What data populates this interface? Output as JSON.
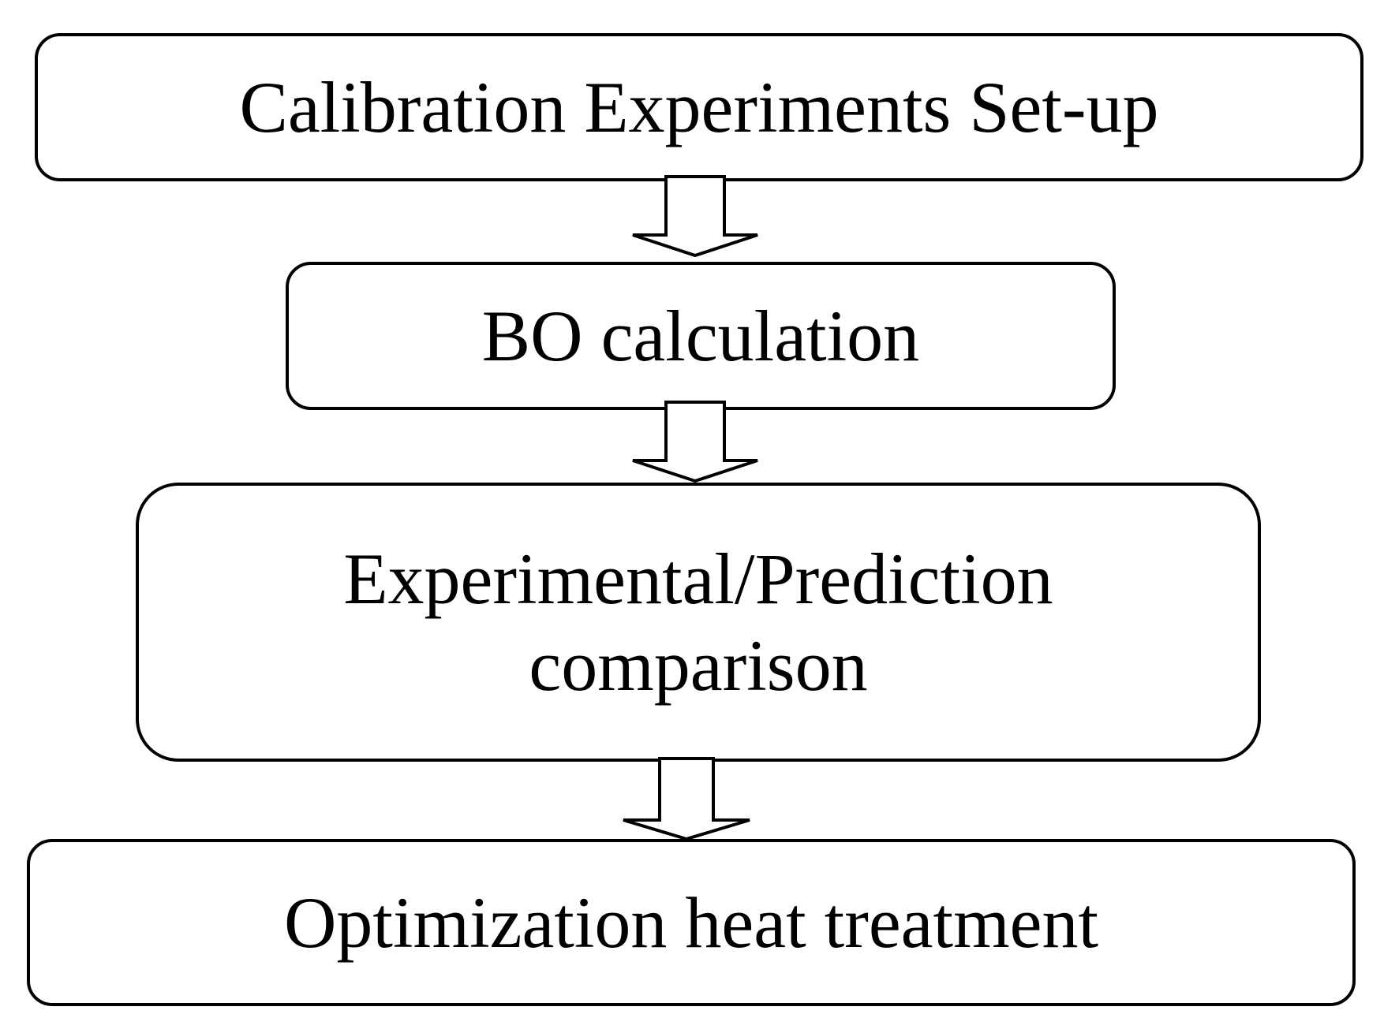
{
  "flowchart": {
    "steps": [
      {
        "label": "Calibration Experiments Set-up"
      },
      {
        "label": "BO calculation"
      },
      {
        "label_line1": "Experimental/Prediction",
        "label_line2": "comparison"
      },
      {
        "label": "Optimization heat treatment"
      }
    ],
    "colors": {
      "stroke": "#000000",
      "fill": "#ffffff",
      "text": "#000000"
    }
  }
}
